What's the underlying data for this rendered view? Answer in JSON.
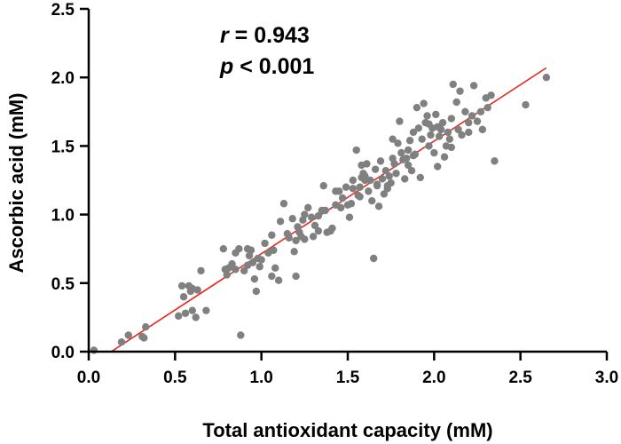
{
  "chart_data": {
    "type": "scatter",
    "xlabel": "Total antioxidant capacity (mM)",
    "ylabel": "Ascorbic acid (mM)",
    "xlim": [
      0.0,
      3.0
    ],
    "ylim": [
      0.0,
      2.5
    ],
    "x_ticks": [
      "0.0",
      "0.5",
      "1.0",
      "1.5",
      "2.0",
      "2.5",
      "3.0"
    ],
    "y_ticks": [
      "0.0",
      "0.5",
      "1.0",
      "1.5",
      "2.0",
      "2.5"
    ],
    "annotations": {
      "r_symbol": "r",
      "r_value": " = 0.943",
      "p_symbol": "p",
      "p_value": " < 0.001"
    },
    "regression_line": {
      "x": [
        0.13,
        2.65
      ],
      "y": [
        0.0,
        2.07
      ]
    },
    "series": [
      {
        "name": "samples",
        "points": [
          [
            0.03,
            0.01
          ],
          [
            0.19,
            0.07
          ],
          [
            0.23,
            0.12
          ],
          [
            0.31,
            0.11
          ],
          [
            0.32,
            0.1
          ],
          [
            0.33,
            0.18
          ],
          [
            0.52,
            0.26
          ],
          [
            0.55,
            0.4
          ],
          [
            0.56,
            0.28
          ],
          [
            0.58,
            0.48
          ],
          [
            0.59,
            0.44
          ],
          [
            0.6,
            0.46
          ],
          [
            0.6,
            0.3
          ],
          [
            0.62,
            0.25
          ],
          [
            0.63,
            0.45
          ],
          [
            0.65,
            0.59
          ],
          [
            0.68,
            0.3
          ],
          [
            0.54,
            0.48
          ],
          [
            0.78,
            0.75
          ],
          [
            0.79,
            0.6
          ],
          [
            0.8,
            0.56
          ],
          [
            0.81,
            0.61
          ],
          [
            0.83,
            0.64
          ],
          [
            0.85,
            0.6
          ],
          [
            0.87,
            0.75
          ],
          [
            0.88,
            0.12
          ],
          [
            0.9,
            0.59
          ],
          [
            0.92,
            0.75
          ],
          [
            0.93,
            0.7
          ],
          [
            0.94,
            0.74
          ],
          [
            0.95,
            0.65
          ],
          [
            0.96,
            0.53
          ],
          [
            0.97,
            0.44
          ],
          [
            0.98,
            0.68
          ],
          [
            1.0,
            0.67
          ],
          [
            1.02,
            0.79
          ],
          [
            1.04,
            0.72
          ],
          [
            1.06,
            0.55
          ],
          [
            1.06,
            0.85
          ],
          [
            1.08,
            0.61
          ],
          [
            1.1,
            0.52
          ],
          [
            1.11,
            0.95
          ],
          [
            1.13,
            1.08
          ],
          [
            1.15,
            0.86
          ],
          [
            1.16,
            0.83
          ],
          [
            1.18,
            0.97
          ],
          [
            1.19,
            0.73
          ],
          [
            1.2,
            0.55
          ],
          [
            1.21,
            0.91
          ],
          [
            1.22,
            0.87
          ],
          [
            1.24,
            0.96
          ],
          [
            1.25,
            0.82
          ],
          [
            1.27,
            1.05
          ],
          [
            1.29,
            0.98
          ],
          [
            1.3,
            0.84
          ],
          [
            1.31,
            0.92
          ],
          [
            1.33,
            0.99
          ],
          [
            1.35,
            1.03
          ],
          [
            1.36,
            1.21
          ],
          [
            1.38,
            0.87
          ],
          [
            1.4,
            0.88
          ],
          [
            1.41,
            0.9
          ],
          [
            1.43,
            1.07
          ],
          [
            1.45,
            1.17
          ],
          [
            1.47,
            1.12
          ],
          [
            1.49,
            1.2
          ],
          [
            1.5,
            1.07
          ],
          [
            1.51,
            0.98
          ],
          [
            1.52,
            1.08
          ],
          [
            1.53,
            1.19
          ],
          [
            1.55,
            1.47
          ],
          [
            1.56,
            1.14
          ],
          [
            1.57,
            1.13
          ],
          [
            1.58,
            1.27
          ],
          [
            1.59,
            1.3
          ],
          [
            1.6,
            1.25
          ],
          [
            1.61,
            1.37
          ],
          [
            1.62,
            1.17
          ],
          [
            1.63,
            1.25
          ],
          [
            1.64,
            1.1
          ],
          [
            1.65,
            0.68
          ],
          [
            1.66,
            1.33
          ],
          [
            1.67,
            1.21
          ],
          [
            1.68,
            1.06
          ],
          [
            1.69,
            1.39
          ],
          [
            1.7,
            1.26
          ],
          [
            1.71,
            1.15
          ],
          [
            1.72,
            1.32
          ],
          [
            1.73,
            1.19
          ],
          [
            1.74,
            1.28
          ],
          [
            1.75,
            1.23
          ],
          [
            1.76,
            1.55
          ],
          [
            1.77,
            1.37
          ],
          [
            1.78,
            1.3
          ],
          [
            1.79,
            1.52
          ],
          [
            1.8,
            1.68
          ],
          [
            1.81,
            1.45
          ],
          [
            1.82,
            1.4
          ],
          [
            1.83,
            1.26
          ],
          [
            1.84,
            1.41
          ],
          [
            1.85,
            1.36
          ],
          [
            1.86,
            1.54
          ],
          [
            1.87,
            1.32
          ],
          [
            1.88,
            1.6
          ],
          [
            1.89,
            1.44
          ],
          [
            1.9,
            1.78
          ],
          [
            1.91,
            1.63
          ],
          [
            1.92,
            1.27
          ],
          [
            1.93,
            1.55
          ],
          [
            1.94,
            1.81
          ],
          [
            1.95,
            1.67
          ],
          [
            1.96,
            1.72
          ],
          [
            1.97,
            1.5
          ],
          [
            1.98,
            1.58
          ],
          [
            1.99,
            1.63
          ],
          [
            2.0,
            1.45
          ],
          [
            2.01,
            1.73
          ],
          [
            2.02,
            1.35
          ],
          [
            2.03,
            1.57
          ],
          [
            2.04,
            1.62
          ],
          [
            2.05,
            1.67
          ],
          [
            2.06,
            1.42
          ],
          [
            2.07,
            1.5
          ],
          [
            2.08,
            1.6
          ],
          [
            2.09,
            1.55
          ],
          [
            2.1,
            1.7
          ],
          [
            2.11,
            1.95
          ],
          [
            2.13,
            1.82
          ],
          [
            2.15,
            1.9
          ],
          [
            2.16,
            1.58
          ],
          [
            2.18,
            1.75
          ],
          [
            2.2,
            1.6
          ],
          [
            2.22,
            1.72
          ],
          [
            2.23,
            1.94
          ],
          [
            2.25,
            1.68
          ],
          [
            2.27,
            1.75
          ],
          [
            2.28,
            1.62
          ],
          [
            2.3,
            1.85
          ],
          [
            2.31,
            1.78
          ],
          [
            2.33,
            1.87
          ],
          [
            2.35,
            1.39
          ],
          [
            2.53,
            1.8
          ],
          [
            2.65,
            2.0
          ],
          [
            1.97,
            1.66
          ],
          [
            1.46,
            1.05
          ],
          [
            1.53,
            1.25
          ],
          [
            1.57,
            1.2
          ],
          [
            1.33,
            0.88
          ],
          [
            1.25,
            1.0
          ],
          [
            0.99,
            0.62
          ],
          [
            1.07,
            0.74
          ],
          [
            1.43,
            1.17
          ],
          [
            1.37,
            1.03
          ],
          [
            1.6,
            1.28
          ],
          [
            1.73,
            1.21
          ],
          [
            1.85,
            1.47
          ],
          [
            2.1,
            1.49
          ],
          [
            2.2,
            1.67
          ],
          [
            0.85,
            0.72
          ],
          [
            0.92,
            0.63
          ],
          [
            1.2,
            0.81
          ],
          [
            1.23,
            0.84
          ],
          [
            1.58,
            1.36
          ],
          [
            1.67,
            1.22
          ],
          [
            1.76,
            1.41
          ],
          [
            1.88,
            1.43
          ],
          [
            2.02,
            1.64
          ],
          [
            2.14,
            1.62
          ]
        ]
      }
    ]
  }
}
